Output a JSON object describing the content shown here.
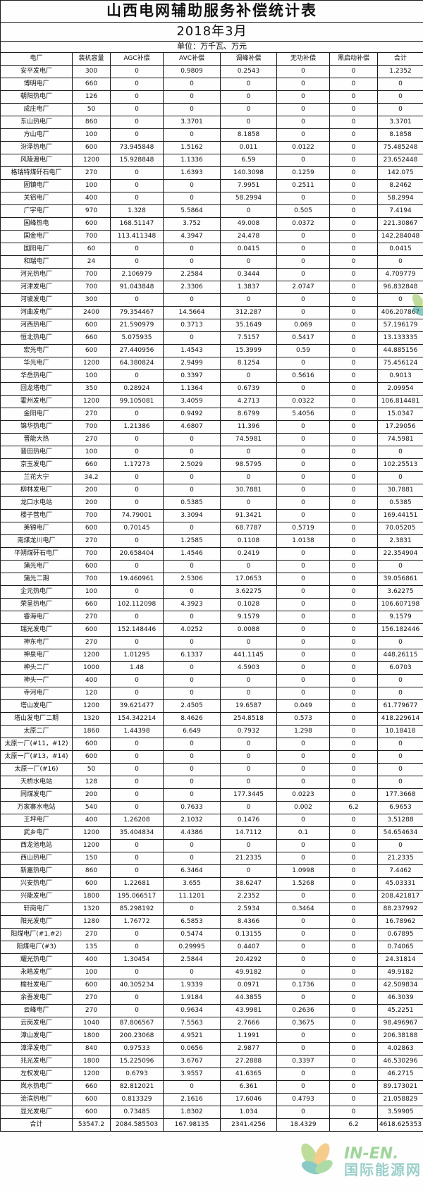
{
  "page": {
    "title": "山西电网辅助服务补偿统计表",
    "subtitle": "2018年3月",
    "unit_note": "单位：万千瓦、万元"
  },
  "watermark": {
    "brand": "IN-EN.",
    "site": "国际能源网",
    "brand_color": "#55b54a",
    "site_color": "#4aa8a0"
  },
  "table": {
    "columns": [
      "电厂",
      "装机容量",
      "AGC补偿",
      "AVC补偿",
      "调峰补偿",
      "无功补偿",
      "黑启动补偿",
      "合计"
    ],
    "rows": [
      [
        "安平发电厂",
        "300",
        "0",
        "0.9809",
        "0.2543",
        "0",
        "0",
        "1.2352"
      ],
      [
        "博明电厂",
        "660",
        "0",
        "0",
        "0",
        "0",
        "0",
        "0"
      ],
      [
        "朝阳热电厂",
        "126",
        "0",
        "0",
        "0",
        "0",
        "0",
        "0"
      ],
      [
        "成庄电厂",
        "50",
        "0",
        "0",
        "0",
        "0",
        "0",
        "0"
      ],
      [
        "东山热电厂",
        "860",
        "0",
        "3.3701",
        "0",
        "0",
        "0",
        "3.3701"
      ],
      [
        "方山电厂",
        "100",
        "0",
        "0",
        "8.1858",
        "0",
        "0",
        "8.1858"
      ],
      [
        "汾泽热电厂",
        "600",
        "73.945848",
        "1.5162",
        "0.011",
        "0.0122",
        "0",
        "75.485248"
      ],
      [
        "风陵渡电厂",
        "1200",
        "15.928848",
        "1.1336",
        "6.59",
        "0",
        "0",
        "23.652448"
      ],
      [
        "格瑞特煤矸石电厂",
        "270",
        "0",
        "1.6393",
        "140.3098",
        "0.1259",
        "0",
        "142.075"
      ],
      [
        "固镇电厂",
        "100",
        "0",
        "0",
        "7.9951",
        "0.2511",
        "0",
        "8.2462"
      ],
      [
        "关铝电厂",
        "400",
        "0",
        "0",
        "58.2994",
        "0",
        "0",
        "58.2994"
      ],
      [
        "广宇电厂",
        "970",
        "1.328",
        "5.5864",
        "0",
        "0.505",
        "0",
        "7.4194"
      ],
      [
        "国峰热电",
        "600",
        "168.51147",
        "3.752",
        "49.008",
        "0.0372",
        "0",
        "221.30867"
      ],
      [
        "国金电厂",
        "700",
        "113.411348",
        "4.3947",
        "24.478",
        "0",
        "0",
        "142.284048"
      ],
      [
        "国阳电厂",
        "60",
        "0",
        "0",
        "0.0415",
        "0",
        "0",
        "0.0415"
      ],
      [
        "和瑞电厂",
        "24",
        "0",
        "0",
        "0",
        "0",
        "0",
        "0"
      ],
      [
        "河光热电厂",
        "700",
        "2.106979",
        "2.2584",
        "0.3444",
        "0",
        "0",
        "4.709779"
      ],
      [
        "河津发电厂",
        "700",
        "91.043848",
        "2.3306",
        "1.3837",
        "2.0747",
        "0",
        "96.832848"
      ],
      [
        "河坡发电厂",
        "300",
        "0",
        "0",
        "0",
        "0",
        "0",
        "0"
      ],
      [
        "河曲发电厂",
        "2400",
        "79.354467",
        "14.5664",
        "312.287",
        "0",
        "0",
        "406.207867"
      ],
      [
        "河西热电厂",
        "600",
        "21.590979",
        "0.3713",
        "35.1649",
        "0.069",
        "0",
        "57.196179"
      ],
      [
        "恒北热电厂",
        "660",
        "5.075935",
        "0",
        "7.5157",
        "0.5417",
        "0",
        "13.133335"
      ],
      [
        "宏光电厂",
        "600",
        "27.440956",
        "1.4543",
        "15.3999",
        "0.59",
        "0",
        "44.885156"
      ],
      [
        "华光电厂",
        "1200",
        "64.380824",
        "2.9499",
        "8.1254",
        "0",
        "0",
        "75.456124"
      ],
      [
        "华岳热电厂",
        "100",
        "0",
        "0.3397",
        "0",
        "0.5616",
        "0",
        "0.9013"
      ],
      [
        "回龙塔电厂",
        "350",
        "0.28924",
        "1.1364",
        "0.6739",
        "0",
        "0",
        "2.09954"
      ],
      [
        "霍州发电厂",
        "1200",
        "99.105081",
        "3.4059",
        "4.2713",
        "0.0322",
        "0",
        "106.814481"
      ],
      [
        "金阳电厂",
        "270",
        "0",
        "0.9492",
        "8.6799",
        "5.4056",
        "0",
        "15.0347"
      ],
      [
        "锦华热电厂",
        "700",
        "1.21386",
        "4.6807",
        "11.396",
        "0",
        "0",
        "17.29056"
      ],
      [
        "晋能大热",
        "270",
        "0",
        "0",
        "74.5981",
        "0",
        "0",
        "74.5981"
      ],
      [
        "晋田热电厂",
        "100",
        "0",
        "0",
        "0",
        "0",
        "0",
        "0"
      ],
      [
        "京玉发电厂",
        "660",
        "1.17273",
        "2.5029",
        "98.5795",
        "0",
        "0",
        "102.25513"
      ],
      [
        "兰花大宁",
        "34.2",
        "0",
        "0",
        "0",
        "0",
        "0",
        "0"
      ],
      [
        "柳林发电厂",
        "200",
        "0",
        "0",
        "30.7881",
        "0",
        "0",
        "30.7881"
      ],
      [
        "龙口水电站",
        "200",
        "0",
        "0.5385",
        "0",
        "0",
        "0",
        "0.5385"
      ],
      [
        "楼子营电厂",
        "700",
        "74.79001",
        "3.3094",
        "91.3421",
        "0",
        "0",
        "169.44151"
      ],
      [
        "美锦电厂",
        "600",
        "0.70145",
        "0",
        "68.7787",
        "0.5719",
        "0",
        "70.05205"
      ],
      [
        "南煤龙川电厂",
        "270",
        "0",
        "1.2585",
        "0.1108",
        "1.0138",
        "0",
        "2.3831"
      ],
      [
        "平朔煤矸石电厂",
        "700",
        "20.658404",
        "1.4546",
        "0.2419",
        "0",
        "0",
        "22.354904"
      ],
      [
        "蒲光电厂",
        "600",
        "0",
        "0",
        "0",
        "0",
        "0",
        "0"
      ],
      [
        "蒲光二期",
        "700",
        "19.460961",
        "2.5306",
        "17.0653",
        "0",
        "0",
        "39.056861"
      ],
      [
        "企元热电厂",
        "100",
        "0",
        "0",
        "3.62275",
        "0",
        "0",
        "3.62275"
      ],
      [
        "荣呈热电厂",
        "660",
        "102.112098",
        "4.3923",
        "0.1028",
        "0",
        "0",
        "106.607198"
      ],
      [
        "睿海电厂",
        "270",
        "0",
        "0",
        "9.1579",
        "0",
        "0",
        "9.1579"
      ],
      [
        "瑞光发电厂",
        "600",
        "152.148446",
        "4.0252",
        "0.0088",
        "0",
        "0",
        "156.182446"
      ],
      [
        "神东电厂",
        "270",
        "0",
        "0",
        "0",
        "0",
        "0",
        "0"
      ],
      [
        "神泉电厂",
        "1200",
        "1.01295",
        "6.1337",
        "441.1145",
        "0",
        "0",
        "448.26115"
      ],
      [
        "神头二厂",
        "1000",
        "1.48",
        "0",
        "4.5903",
        "0",
        "0",
        "6.0703"
      ],
      [
        "神头一厂",
        "400",
        "0",
        "0",
        "0",
        "0",
        "0",
        "0"
      ],
      [
        "寺河电厂",
        "120",
        "0",
        "0",
        "0",
        "0",
        "0",
        "0"
      ],
      [
        "塔山发电厂",
        "1200",
        "39.621477",
        "2.4505",
        "19.6587",
        "0.049",
        "0",
        "61.779677"
      ],
      [
        "塔山发电厂二期",
        "1320",
        "154.342214",
        "8.4626",
        "254.8518",
        "0.573",
        "0",
        "418.229614"
      ],
      [
        "太原二厂",
        "1860",
        "1.44398",
        "6.649",
        "0.7932",
        "1.298",
        "0",
        "10.18418"
      ],
      [
        "太原一厂(#11，#12)",
        "600",
        "0",
        "0",
        "0",
        "0",
        "0",
        "0"
      ],
      [
        "太原一厂(#13，#14)",
        "600",
        "0",
        "0",
        "0",
        "0",
        "0",
        "0"
      ],
      [
        "太原一厂(#16)",
        "50",
        "0",
        "0",
        "0",
        "0",
        "0",
        "0"
      ],
      [
        "天桥水电站",
        "128",
        "0",
        "0",
        "0",
        "0",
        "0",
        "0"
      ],
      [
        "同煤发电厂",
        "200",
        "0",
        "0",
        "177.3445",
        "0.0223",
        "0",
        "177.3668"
      ],
      [
        "万家寨水电站",
        "540",
        "0",
        "0.7633",
        "0",
        "0.002",
        "6.2",
        "6.9653"
      ],
      [
        "王坪电厂",
        "400",
        "1.26208",
        "2.1032",
        "0.1476",
        "0",
        "0",
        "3.51288"
      ],
      [
        "武乡电厂",
        "1200",
        "35.404834",
        "4.4386",
        "14.7112",
        "0.1",
        "0",
        "54.654634"
      ],
      [
        "西龙池电站",
        "1200",
        "0",
        "0",
        "0",
        "0",
        "0",
        "0"
      ],
      [
        "西山热电厂",
        "150",
        "0",
        "0",
        "21.2335",
        "0",
        "0",
        "21.2335"
      ],
      [
        "新嘉热电厂",
        "860",
        "0",
        "6.3464",
        "0",
        "1.0998",
        "0",
        "7.4462"
      ],
      [
        "兴安热电厂",
        "600",
        "1.22681",
        "3.655",
        "38.6247",
        "1.5268",
        "0",
        "45.03331"
      ],
      [
        "兴能发电厂",
        "1800",
        "195.066517",
        "11.1201",
        "2.2352",
        "0",
        "0",
        "208.421817"
      ],
      [
        "轩岗电厂",
        "1320",
        "85.298192",
        "0",
        "2.5934",
        "0.3464",
        "0",
        "88.237992"
      ],
      [
        "阳光发电厂",
        "1280",
        "1.76772",
        "6.5853",
        "8.4366",
        "0",
        "0",
        "16.78962"
      ],
      [
        "阳煤电厂(#1,#2)",
        "270",
        "0",
        "0.5474",
        "0.13155",
        "0",
        "0",
        "0.67895"
      ],
      [
        "阳煤电厂(#3)",
        "135",
        "0",
        "0.29995",
        "0.4407",
        "0",
        "0",
        "0.74065"
      ],
      [
        "耀光热电厂",
        "400",
        "1.30454",
        "2.5844",
        "20.4292",
        "0",
        "0",
        "24.31814"
      ],
      [
        "永皓发电厂",
        "100",
        "0",
        "0",
        "49.9182",
        "0",
        "0",
        "49.9182"
      ],
      [
        "榆社发电厂",
        "600",
        "40.305234",
        "1.9339",
        "0.0971",
        "0.1736",
        "0",
        "42.509834"
      ],
      [
        "余吾发电厂",
        "270",
        "0",
        "1.9184",
        "44.3855",
        "0",
        "0",
        "46.3039"
      ],
      [
        "云峰电厂",
        "270",
        "0",
        "0.9634",
        "43.9981",
        "0.2636",
        "0",
        "45.2251"
      ],
      [
        "云岗发电厂",
        "1040",
        "87.806567",
        "7.5563",
        "2.7666",
        "0.3675",
        "0",
        "98.496967"
      ],
      [
        "漳山发电厂",
        "1800",
        "200.23068",
        "4.9521",
        "1.1991",
        "0",
        "0",
        "206.38188"
      ],
      [
        "漳泽发电厂",
        "840",
        "0.97533",
        "0.0656",
        "2.9877",
        "0",
        "0",
        "4.02863"
      ],
      [
        "兆光发电厂",
        "1800",
        "15.225096",
        "3.6767",
        "27.2888",
        "0.3397",
        "0",
        "46.530296"
      ],
      [
        "左权发电厂",
        "1200",
        "0.6793",
        "3.9557",
        "41.6365",
        "0",
        "0",
        "46.2715"
      ],
      [
        "岚水热电厂",
        "660",
        "82.812021",
        "0",
        "6.361",
        "0",
        "0",
        "89.173021"
      ],
      [
        "浍滨热电厂",
        "600",
        "0.813329",
        "2.1616",
        "17.6046",
        "0.4793",
        "0",
        "21.058829"
      ],
      [
        "显光发电厂",
        "600",
        "0.73485",
        "1.8302",
        "1.034",
        "0",
        "0",
        "3.59905"
      ]
    ],
    "total_row": [
      "合计",
      "53547.2",
      "2084.585503",
      "167.98135",
      "2341.4256",
      "18.4329",
      "6.2",
      "4618.625353"
    ]
  }
}
